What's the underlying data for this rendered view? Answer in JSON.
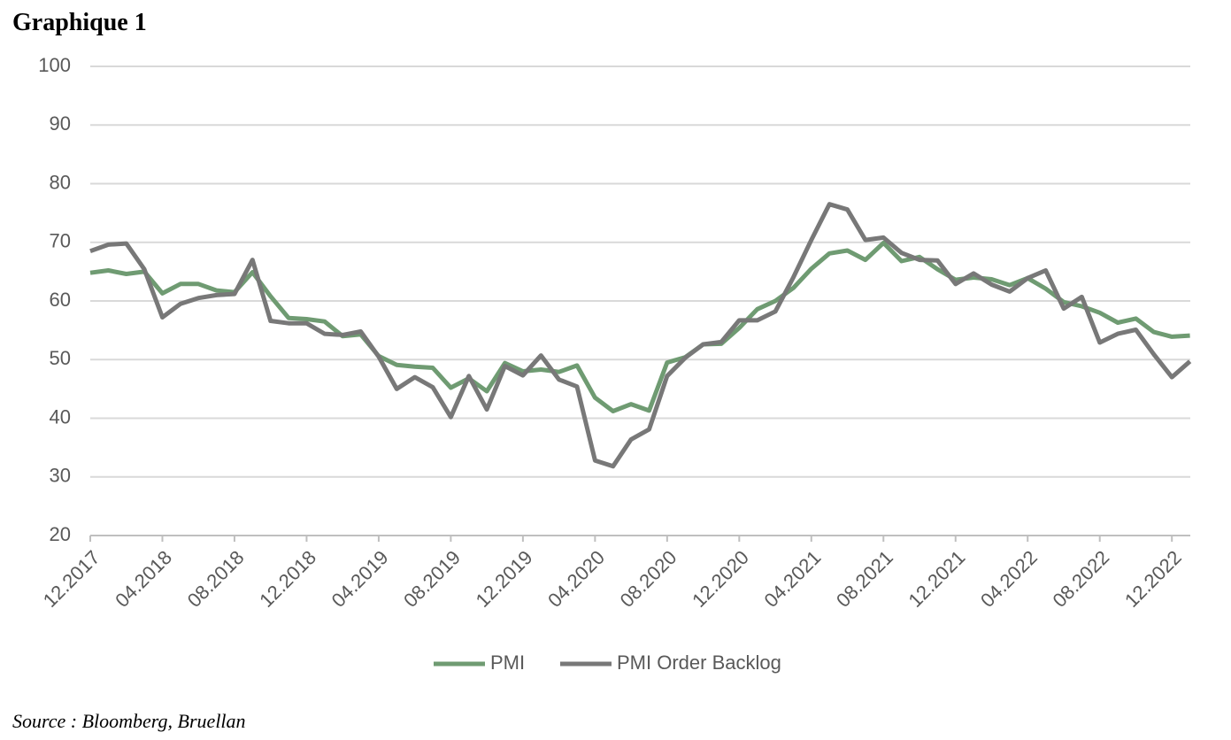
{
  "chart_data": {
    "type": "line",
    "title": "Graphique 1",
    "source": "Source : Bloomberg, Bruellan",
    "categories": [
      "12.2017",
      null,
      null,
      null,
      "04.2018",
      null,
      null,
      null,
      "08.2018",
      null,
      null,
      null,
      "12.2018",
      null,
      null,
      null,
      "04.2019",
      null,
      null,
      null,
      "08.2019",
      null,
      null,
      null,
      "12.2019",
      null,
      null,
      null,
      "04.2020",
      null,
      null,
      null,
      "08.2020",
      null,
      null,
      null,
      "12.2020",
      null,
      null,
      null,
      "04.2021",
      null,
      null,
      null,
      "08.2021",
      null,
      null,
      null,
      "12.2021",
      null,
      null,
      null,
      "04.2022",
      null,
      null,
      null,
      "08.2022",
      null,
      null,
      null,
      "12.2022",
      null
    ],
    "series": [
      {
        "name": "PMI",
        "color": "#6f9b72",
        "values": [
          64.8,
          65.2,
          64.6,
          65.0,
          61.3,
          62.9,
          62.9,
          61.8,
          61.5,
          64.9,
          60.8,
          57.1,
          56.9,
          56.5,
          54.0,
          54.3,
          50.6,
          49.1,
          48.8,
          48.6,
          45.2,
          46.8,
          44.6,
          49.4,
          48.0,
          48.3,
          47.9,
          49.0,
          43.5,
          41.2,
          42.4,
          41.3,
          49.5,
          50.4,
          52.6,
          52.7,
          55.4,
          58.6,
          60.0,
          62.2,
          65.5,
          68.1,
          68.6,
          67.0,
          69.9,
          66.8,
          67.5,
          65.4,
          63.6,
          64.0,
          63.7,
          62.7,
          63.9,
          62.1,
          59.8,
          59.1,
          58.0,
          56.3,
          57.0,
          54.7,
          53.9,
          54.1
        ]
      },
      {
        "name": "PMI Order Backlog",
        "color": "#787878",
        "values": [
          68.5,
          69.6,
          69.8,
          65.4,
          57.2,
          59.5,
          60.5,
          61.0,
          61.2,
          67.0,
          56.6,
          56.2,
          56.2,
          54.4,
          54.2,
          54.8,
          50.5,
          45.0,
          47.0,
          45.3,
          40.2,
          47.2,
          41.5,
          48.9,
          47.3,
          50.7,
          46.6,
          45.4,
          32.8,
          31.8,
          36.4,
          38.1,
          47.2,
          50.3,
          52.6,
          53.0,
          56.7,
          56.7,
          58.2,
          64.0,
          70.4,
          76.5,
          75.6,
          70.4,
          70.8,
          68.2,
          67.0,
          66.9,
          62.9,
          64.7,
          62.8,
          61.6,
          63.9,
          65.2,
          58.7,
          60.7,
          52.9,
          54.4,
          55.1,
          50.9,
          47.0,
          49.7
        ]
      }
    ],
    "ylim": [
      20,
      100
    ],
    "yticks": [
      20,
      30,
      40,
      50,
      60,
      70,
      80,
      90,
      100
    ],
    "grid": true,
    "legend": "bottom"
  }
}
